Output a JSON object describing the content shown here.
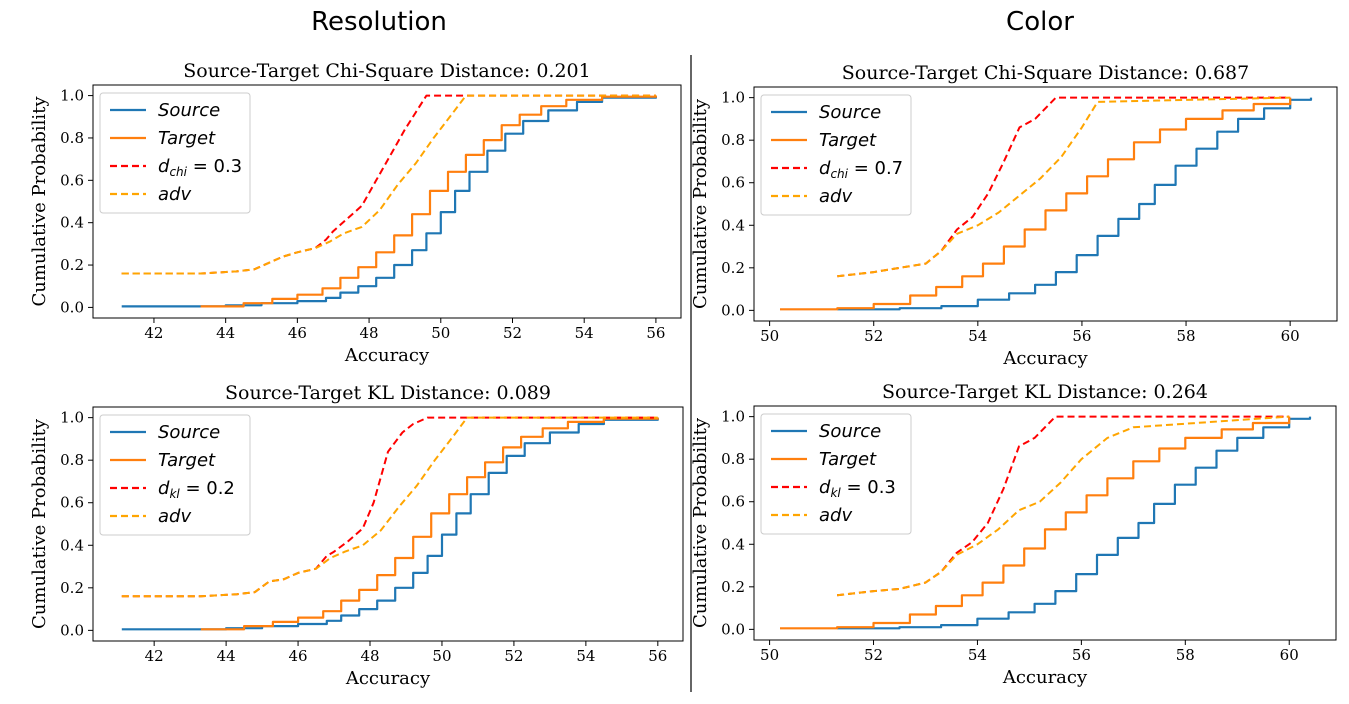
{
  "figure": {
    "group_titles": [
      "Resolution",
      "Color"
    ]
  },
  "chart_data": [
    {
      "type": "line",
      "group": "Resolution",
      "title": "Source-Target Chi-Square Distance: 0.201",
      "xlabel": "Accuracy",
      "ylabel": "Cumulative Probability",
      "xlim": [
        40.3,
        56.7
      ],
      "ylim": [
        -0.05,
        1.05
      ],
      "xticks": [
        42,
        44,
        46,
        48,
        50,
        52,
        54,
        56
      ],
      "yticks": [
        0.0,
        0.2,
        0.4,
        0.6,
        0.8,
        1.0
      ],
      "grid": false,
      "legend_position": "top-left",
      "legend": [
        {
          "label": "Source",
          "color": "#1f77b4",
          "dash": "solid",
          "italic_main": "Source",
          "sub": "",
          "rest": ""
        },
        {
          "label": "Target",
          "color": "#ff7f0e",
          "dash": "solid",
          "italic_main": "Target",
          "sub": "",
          "rest": ""
        },
        {
          "label": "d_chi = 0.3",
          "color": "#ff0000",
          "dash": "dashed",
          "italic_main": "d",
          "sub": "chi",
          "rest": " = 0.3"
        },
        {
          "label": "adv",
          "color": "#ffa500",
          "dash": "dashed",
          "italic_main": "adv",
          "sub": "",
          "rest": ""
        }
      ],
      "series": [
        {
          "name": "Source",
          "color": "#1f77b4",
          "dash": "solid",
          "step": true,
          "x": [
            41.1,
            44.0,
            45.0,
            46.0,
            46.8,
            47.2,
            47.7,
            48.2,
            48.7,
            49.2,
            49.6,
            50.0,
            50.4,
            50.8,
            51.3,
            51.8,
            52.3,
            53.0,
            53.8,
            54.5,
            56.0
          ],
          "y": [
            0.005,
            0.01,
            0.02,
            0.03,
            0.045,
            0.07,
            0.1,
            0.14,
            0.2,
            0.27,
            0.35,
            0.45,
            0.55,
            0.64,
            0.74,
            0.82,
            0.88,
            0.93,
            0.97,
            0.99,
            1.0
          ]
        },
        {
          "name": "Target",
          "color": "#ff7f0e",
          "dash": "solid",
          "step": true,
          "x": [
            43.3,
            44.5,
            45.3,
            46.0,
            46.7,
            47.2,
            47.7,
            48.2,
            48.7,
            49.2,
            49.7,
            50.2,
            50.7,
            51.2,
            51.7,
            52.2,
            52.8,
            53.5,
            54.5,
            56.0
          ],
          "y": [
            0.005,
            0.02,
            0.04,
            0.06,
            0.09,
            0.14,
            0.19,
            0.26,
            0.34,
            0.44,
            0.55,
            0.64,
            0.72,
            0.79,
            0.86,
            0.91,
            0.95,
            0.98,
            0.995,
            1.0
          ]
        },
        {
          "name": "d_chi = 0.3",
          "color": "#ff0000",
          "dash": "dashed",
          "step": false,
          "x": [
            41.1,
            43.3,
            44.3,
            44.8,
            45.2,
            45.6,
            46.0,
            46.5,
            46.8,
            47.0,
            47.4,
            47.8,
            48.2,
            48.6,
            49.0,
            49.3,
            49.6,
            56.0
          ],
          "y": [
            0.16,
            0.16,
            0.17,
            0.18,
            0.21,
            0.24,
            0.26,
            0.28,
            0.32,
            0.36,
            0.42,
            0.48,
            0.6,
            0.72,
            0.84,
            0.92,
            1.0,
            1.0
          ]
        },
        {
          "name": "adv",
          "color": "#ffa500",
          "dash": "dashed",
          "step": false,
          "x": [
            41.1,
            43.3,
            44.3,
            44.8,
            45.2,
            45.6,
            46.0,
            46.5,
            46.9,
            47.3,
            47.8,
            48.3,
            48.8,
            49.3,
            49.8,
            50.3,
            50.7,
            56.0
          ],
          "y": [
            0.16,
            0.16,
            0.17,
            0.18,
            0.21,
            0.24,
            0.26,
            0.28,
            0.31,
            0.35,
            0.38,
            0.46,
            0.58,
            0.68,
            0.8,
            0.91,
            1.0,
            1.0
          ]
        }
      ]
    },
    {
      "type": "line",
      "group": "Color",
      "title": "Source-Target Chi-Square Distance: 0.687",
      "xlabel": "Accuracy",
      "ylabel": "Cumulative Probability",
      "xlim": [
        49.7,
        60.9
      ],
      "ylim": [
        -0.05,
        1.05
      ],
      "xticks": [
        50,
        52,
        54,
        56,
        58,
        60
      ],
      "yticks": [
        0.0,
        0.2,
        0.4,
        0.6,
        0.8,
        1.0
      ],
      "grid": false,
      "legend_position": "top-left",
      "legend": [
        {
          "label": "Source",
          "color": "#1f77b4",
          "dash": "solid",
          "italic_main": "Source",
          "sub": "",
          "rest": ""
        },
        {
          "label": "Target",
          "color": "#ff7f0e",
          "dash": "solid",
          "italic_main": "Target",
          "sub": "",
          "rest": ""
        },
        {
          "label": "d_chi = 0.7",
          "color": "#ff0000",
          "dash": "dashed",
          "italic_main": "d",
          "sub": "chi",
          "rest": " = 0.7"
        },
        {
          "label": "adv",
          "color": "#ffa500",
          "dash": "dashed",
          "italic_main": "adv",
          "sub": "",
          "rest": ""
        }
      ],
      "series": [
        {
          "name": "Source",
          "color": "#1f77b4",
          "dash": "solid",
          "step": true,
          "x": [
            51.3,
            52.5,
            53.3,
            54.0,
            54.6,
            55.1,
            55.5,
            55.9,
            56.3,
            56.7,
            57.1,
            57.4,
            57.8,
            58.2,
            58.6,
            59.0,
            59.5,
            60.0,
            60.4
          ],
          "y": [
            0.005,
            0.01,
            0.02,
            0.05,
            0.08,
            0.12,
            0.18,
            0.26,
            0.35,
            0.43,
            0.5,
            0.59,
            0.68,
            0.76,
            0.84,
            0.9,
            0.95,
            0.99,
            1.0
          ]
        },
        {
          "name": "Target",
          "color": "#ff7f0e",
          "dash": "solid",
          "step": true,
          "x": [
            50.2,
            51.3,
            52.0,
            52.7,
            53.2,
            53.7,
            54.1,
            54.5,
            54.9,
            55.3,
            55.7,
            56.1,
            56.5,
            57.0,
            57.5,
            58.0,
            58.7,
            59.3,
            60.0
          ],
          "y": [
            0.005,
            0.01,
            0.03,
            0.07,
            0.11,
            0.16,
            0.22,
            0.3,
            0.38,
            0.47,
            0.55,
            0.63,
            0.71,
            0.79,
            0.85,
            0.9,
            0.94,
            0.97,
            1.0
          ]
        },
        {
          "name": "d_chi = 0.7",
          "color": "#ff0000",
          "dash": "dashed",
          "step": false,
          "x": [
            51.3,
            52.0,
            52.5,
            53.0,
            53.3,
            53.6,
            53.9,
            54.2,
            54.5,
            54.8,
            55.1,
            55.5,
            60.0
          ],
          "y": [
            0.16,
            0.18,
            0.2,
            0.22,
            0.28,
            0.38,
            0.44,
            0.55,
            0.7,
            0.86,
            0.9,
            1.0,
            1.0
          ]
        },
        {
          "name": "adv",
          "color": "#ffa500",
          "dash": "dashed",
          "step": false,
          "x": [
            51.3,
            52.0,
            52.5,
            53.0,
            53.3,
            53.6,
            54.0,
            54.4,
            54.8,
            55.2,
            55.6,
            56.0,
            56.3,
            60.0
          ],
          "y": [
            0.16,
            0.18,
            0.2,
            0.22,
            0.28,
            0.36,
            0.4,
            0.46,
            0.54,
            0.62,
            0.72,
            0.86,
            0.98,
            1.0
          ]
        }
      ]
    },
    {
      "type": "line",
      "group": "Resolution",
      "title": "Source-Target KL Distance: 0.089",
      "xlabel": "Accuracy",
      "ylabel": "Cumulative Probability",
      "xlim": [
        40.3,
        56.7
      ],
      "ylim": [
        -0.05,
        1.05
      ],
      "xticks": [
        42,
        44,
        46,
        48,
        50,
        52,
        54,
        56
      ],
      "yticks": [
        0.0,
        0.2,
        0.4,
        0.6,
        0.8,
        1.0
      ],
      "grid": false,
      "legend_position": "top-left",
      "legend": [
        {
          "label": "Source",
          "color": "#1f77b4",
          "dash": "solid",
          "italic_main": "Source",
          "sub": "",
          "rest": ""
        },
        {
          "label": "Target",
          "color": "#ff7f0e",
          "dash": "solid",
          "italic_main": "Target",
          "sub": "",
          "rest": ""
        },
        {
          "label": "d_kl = 0.2",
          "color": "#ff0000",
          "dash": "dashed",
          "italic_main": "d",
          "sub": "kl",
          "rest": " = 0.2"
        },
        {
          "label": "adv",
          "color": "#ffa500",
          "dash": "dashed",
          "italic_main": "adv",
          "sub": "",
          "rest": ""
        }
      ],
      "series": [
        {
          "name": "Source",
          "color": "#1f77b4",
          "dash": "solid",
          "step": true,
          "x": [
            41.1,
            44.0,
            45.0,
            46.0,
            46.8,
            47.2,
            47.7,
            48.2,
            48.7,
            49.2,
            49.6,
            50.0,
            50.4,
            50.8,
            51.3,
            51.8,
            52.3,
            53.0,
            53.8,
            54.5,
            56.0
          ],
          "y": [
            0.005,
            0.01,
            0.02,
            0.03,
            0.045,
            0.07,
            0.1,
            0.14,
            0.2,
            0.27,
            0.35,
            0.45,
            0.55,
            0.64,
            0.74,
            0.82,
            0.88,
            0.93,
            0.97,
            0.99,
            1.0
          ]
        },
        {
          "name": "Target",
          "color": "#ff7f0e",
          "dash": "solid",
          "step": true,
          "x": [
            43.3,
            44.5,
            45.3,
            46.0,
            46.7,
            47.2,
            47.7,
            48.2,
            48.7,
            49.2,
            49.7,
            50.2,
            50.7,
            51.2,
            51.7,
            52.2,
            52.8,
            53.5,
            54.5,
            56.0
          ],
          "y": [
            0.005,
            0.02,
            0.04,
            0.06,
            0.09,
            0.14,
            0.19,
            0.26,
            0.34,
            0.44,
            0.55,
            0.64,
            0.72,
            0.79,
            0.86,
            0.91,
            0.95,
            0.98,
            0.995,
            1.0
          ]
        },
        {
          "name": "d_kl = 0.2",
          "color": "#ff0000",
          "dash": "dashed",
          "step": false,
          "x": [
            41.1,
            43.3,
            44.3,
            44.8,
            45.2,
            45.6,
            46.0,
            46.5,
            46.8,
            47.0,
            47.4,
            47.8,
            48.1,
            48.5,
            48.9,
            49.2,
            49.6,
            56.0
          ],
          "y": [
            0.16,
            0.16,
            0.17,
            0.18,
            0.23,
            0.24,
            0.27,
            0.29,
            0.35,
            0.37,
            0.42,
            0.48,
            0.6,
            0.84,
            0.93,
            0.97,
            1.0,
            1.0
          ]
        },
        {
          "name": "adv",
          "color": "#ffa500",
          "dash": "dashed",
          "step": false,
          "x": [
            41.1,
            43.3,
            44.3,
            44.8,
            45.2,
            45.6,
            46.0,
            46.5,
            46.9,
            47.3,
            47.8,
            48.3,
            48.8,
            49.3,
            49.8,
            50.3,
            50.7,
            56.0
          ],
          "y": [
            0.16,
            0.16,
            0.17,
            0.18,
            0.23,
            0.24,
            0.27,
            0.29,
            0.34,
            0.37,
            0.4,
            0.47,
            0.58,
            0.68,
            0.8,
            0.91,
            1.0,
            1.0
          ]
        }
      ]
    },
    {
      "type": "line",
      "group": "Color",
      "title": "Source-Target KL Distance: 0.264",
      "xlabel": "Accuracy",
      "ylabel": "Cumulative Probability",
      "xlim": [
        49.7,
        60.9
      ],
      "ylim": [
        -0.05,
        1.05
      ],
      "xticks": [
        50,
        52,
        54,
        56,
        58,
        60
      ],
      "yticks": [
        0.0,
        0.2,
        0.4,
        0.6,
        0.8,
        1.0
      ],
      "grid": false,
      "legend_position": "top-left",
      "legend": [
        {
          "label": "Source",
          "color": "#1f77b4",
          "dash": "solid",
          "italic_main": "Source",
          "sub": "",
          "rest": ""
        },
        {
          "label": "Target",
          "color": "#ff7f0e",
          "dash": "solid",
          "italic_main": "Target",
          "sub": "",
          "rest": ""
        },
        {
          "label": "d_kl = 0.3",
          "color": "#ff0000",
          "dash": "dashed",
          "italic_main": "d",
          "sub": "kl",
          "rest": " = 0.3"
        },
        {
          "label": "adv",
          "color": "#ffa500",
          "dash": "dashed",
          "italic_main": "adv",
          "sub": "",
          "rest": ""
        }
      ],
      "series": [
        {
          "name": "Source",
          "color": "#1f77b4",
          "dash": "solid",
          "step": true,
          "x": [
            51.3,
            52.5,
            53.3,
            54.0,
            54.6,
            55.1,
            55.5,
            55.9,
            56.3,
            56.7,
            57.1,
            57.4,
            57.8,
            58.2,
            58.6,
            59.0,
            59.5,
            60.0,
            60.4
          ],
          "y": [
            0.005,
            0.01,
            0.02,
            0.05,
            0.08,
            0.12,
            0.18,
            0.26,
            0.35,
            0.43,
            0.5,
            0.59,
            0.68,
            0.76,
            0.84,
            0.9,
            0.95,
            0.99,
            1.0
          ]
        },
        {
          "name": "Target",
          "color": "#ff7f0e",
          "dash": "solid",
          "step": true,
          "x": [
            50.2,
            51.3,
            52.0,
            52.7,
            53.2,
            53.7,
            54.1,
            54.5,
            54.9,
            55.3,
            55.7,
            56.1,
            56.5,
            57.0,
            57.5,
            58.0,
            58.7,
            59.3,
            60.0
          ],
          "y": [
            0.005,
            0.01,
            0.03,
            0.07,
            0.11,
            0.16,
            0.22,
            0.3,
            0.38,
            0.47,
            0.55,
            0.63,
            0.71,
            0.79,
            0.85,
            0.9,
            0.94,
            0.97,
            1.0
          ]
        },
        {
          "name": "d_kl = 0.3",
          "color": "#ff0000",
          "dash": "dashed",
          "step": false,
          "x": [
            51.3,
            52.0,
            52.5,
            53.0,
            53.3,
            53.6,
            53.9,
            54.2,
            54.5,
            54.8,
            55.1,
            55.5,
            60.0
          ],
          "y": [
            0.16,
            0.18,
            0.19,
            0.22,
            0.27,
            0.36,
            0.41,
            0.5,
            0.66,
            0.86,
            0.9,
            1.0,
            1.0
          ]
        },
        {
          "name": "adv",
          "color": "#ffa500",
          "dash": "dashed",
          "step": false,
          "x": [
            51.3,
            52.0,
            52.5,
            53.0,
            53.3,
            53.6,
            54.0,
            54.4,
            54.8,
            55.2,
            55.6,
            56.0,
            56.5,
            57.0,
            60.0
          ],
          "y": [
            0.16,
            0.18,
            0.19,
            0.22,
            0.27,
            0.35,
            0.4,
            0.47,
            0.56,
            0.6,
            0.69,
            0.8,
            0.9,
            0.95,
            1.0
          ]
        }
      ]
    }
  ]
}
